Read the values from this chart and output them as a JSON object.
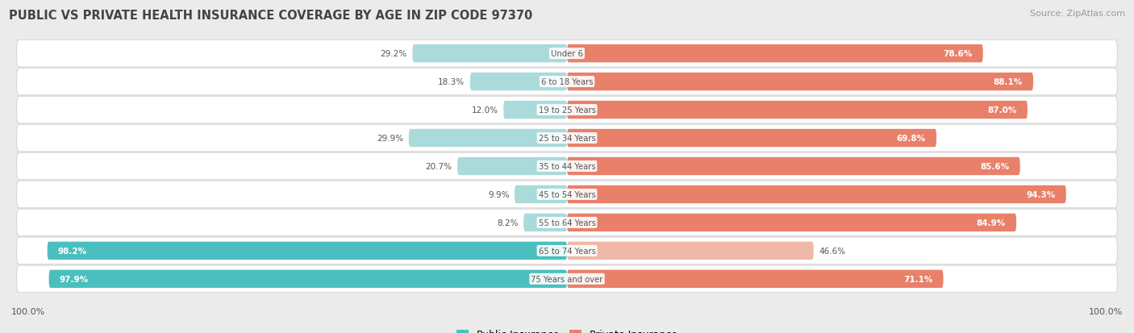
{
  "title": "PUBLIC VS PRIVATE HEALTH INSURANCE COVERAGE BY AGE IN ZIP CODE 97370",
  "source": "Source: ZipAtlas.com",
  "categories": [
    "Under 6",
    "6 to 18 Years",
    "19 to 25 Years",
    "25 to 34 Years",
    "35 to 44 Years",
    "45 to 54 Years",
    "55 to 64 Years",
    "65 to 74 Years",
    "75 Years and over"
  ],
  "public_values": [
    29.2,
    18.3,
    12.0,
    29.9,
    20.7,
    9.9,
    8.2,
    98.2,
    97.9
  ],
  "private_values": [
    78.6,
    88.1,
    87.0,
    69.8,
    85.6,
    94.3,
    84.9,
    46.6,
    71.1
  ],
  "public_color": "#4bbfbf",
  "private_color": "#e8806a",
  "public_color_light": "#aadada",
  "private_color_light": "#f0b8a8",
  "bg_color": "#ebebeb",
  "row_bg_color": "#f7f7f7",
  "title_color": "#444444",
  "source_color": "#999999",
  "label_dark": "#555555",
  "label_white": "#ffffff",
  "bar_height": 0.62,
  "xlim_left": -105,
  "xlim_right": 105,
  "figsize": [
    14.06,
    4.14
  ],
  "dpi": 100
}
